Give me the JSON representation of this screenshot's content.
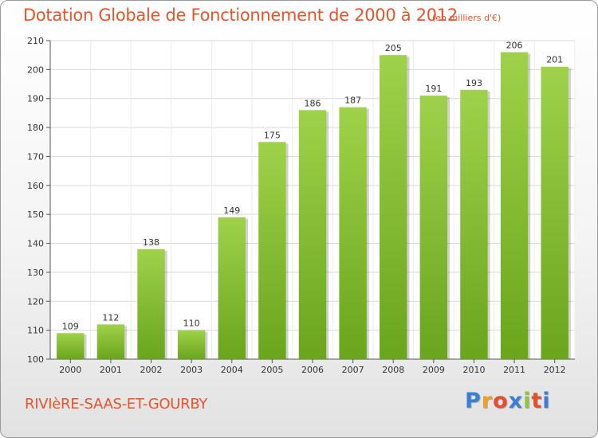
{
  "header": {
    "title": "Dotation Globale de Fonctionnement de 2000 à 2012",
    "subtitle": "(en milliers d'€)"
  },
  "footer": {
    "commune": "RIVIèRE-SAAS-ET-GOURBY",
    "logo": {
      "letters": [
        "P",
        "r",
        "o",
        "x",
        "i",
        "t",
        "i"
      ],
      "colors": [
        "#3a7fd5",
        "#f0a020",
        "#e84c2a",
        "#3a7fd5",
        "#8cc63f",
        "#e84c2a",
        "#3a7fd5"
      ]
    }
  },
  "chart_data": {
    "type": "bar",
    "categories": [
      "2000",
      "2001",
      "2002",
      "2003",
      "2004",
      "2005",
      "2006",
      "2007",
      "2008",
      "2009",
      "2010",
      "2011",
      "2012"
    ],
    "values": [
      109,
      112,
      138,
      110,
      149,
      175,
      186,
      187,
      205,
      191,
      193,
      206,
      201
    ],
    "data_labels": [
      "109",
      "112",
      "138",
      "110",
      "149",
      "175",
      "186",
      "187",
      "205",
      "191",
      "193",
      "206",
      "201"
    ],
    "yticks": [
      "100",
      "110",
      "120",
      "130",
      "140",
      "150",
      "160",
      "170",
      "180",
      "190",
      "200",
      "210"
    ],
    "ylim": [
      100,
      210
    ],
    "grid": true,
    "bar_color": "#8cc63f"
  }
}
